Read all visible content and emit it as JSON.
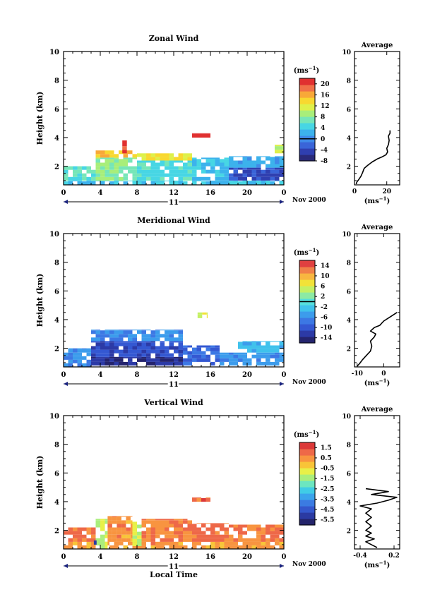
{
  "colors": {
    "zonal_scale": [
      "#2a2a7a",
      "#2f3fb0",
      "#3a64d8",
      "#3f8ae8",
      "#3cb2ec",
      "#47d6e4",
      "#76e6b8",
      "#a8ee7a",
      "#dff04a",
      "#f8d830",
      "#f8a838",
      "#f07048",
      "#e03030"
    ],
    "meridional_scale": [
      "#24246e",
      "#2c3aa6",
      "#3458d2",
      "#3c78e4",
      "#3c9cec",
      "#40c2ec",
      "#56dedc",
      "#8ceaa4",
      "#c4f064",
      "#f2e238",
      "#f8b640",
      "#f08048",
      "#e04040"
    ],
    "vertical_scale": [
      "#23236a",
      "#2b3aa2",
      "#3457cc",
      "#3b7be2",
      "#3ba4ec",
      "#40cce6",
      "#6ce6c0",
      "#aaee7c",
      "#e8f048",
      "#f8c438",
      "#f89440",
      "#ee6848",
      "#dc3838"
    ]
  },
  "chart_data": [
    {
      "type": "heatmap",
      "title": "Zonal Wind",
      "xlabel": "",
      "ylabel": "Height (km)",
      "xlim": [
        0,
        24
      ],
      "ylim": [
        0.7,
        10
      ],
      "xticks": [
        "0",
        "4",
        "8",
        "12",
        "16",
        "20",
        "0"
      ],
      "yticks": [
        "2",
        "4",
        "6",
        "8",
        "10"
      ],
      "date_day": "11",
      "date_label": "Nov 2000",
      "colorbar": {
        "unit_label": "(ms",
        "unit_exp": "−1",
        "unit_close": ")",
        "range": [
          -8,
          22
        ],
        "ticks": [
          "20",
          "16",
          "12",
          "8",
          "4",
          "0",
          "-4",
          "-8"
        ],
        "tick_values": [
          20,
          16,
          12,
          8,
          4,
          0,
          -4,
          -8
        ],
        "marker_value": 0
      },
      "regions": [
        {
          "x": [
            0.0,
            24.0
          ],
          "y": [
            0.7,
            1.0
          ],
          "value": 3
        },
        {
          "x": [
            0.0,
            3.5
          ],
          "y": [
            1.0,
            2.0
          ],
          "value": 6
        },
        {
          "x": [
            3.5,
            8.0
          ],
          "y": [
            1.0,
            2.6
          ],
          "value": 8
        },
        {
          "x": [
            3.5,
            8.0
          ],
          "y": [
            2.6,
            3.1
          ],
          "value": 15
        },
        {
          "x": [
            8.0,
            14.0
          ],
          "y": [
            1.0,
            2.4
          ],
          "value": 5
        },
        {
          "x": [
            8.0,
            14.0
          ],
          "y": [
            2.4,
            2.9
          ],
          "value": 13
        },
        {
          "x": [
            14.0,
            18.0
          ],
          "y": [
            1.0,
            2.6
          ],
          "value": 3
        },
        {
          "x": [
            18.0,
            24.0
          ],
          "y": [
            1.0,
            1.9
          ],
          "value": -4
        },
        {
          "x": [
            18.0,
            24.0
          ],
          "y": [
            1.9,
            2.7
          ],
          "value": 2
        },
        {
          "x": [
            6.4,
            6.9
          ],
          "y": [
            2.9,
            3.8
          ],
          "value": 20
        },
        {
          "x": [
            14.0,
            16.0
          ],
          "y": [
            4.0,
            4.3
          ],
          "value": 21
        },
        {
          "x": [
            23.0,
            24.0
          ],
          "y": [
            2.9,
            3.5
          ],
          "value": 11
        }
      ],
      "average_profile": {
        "title": "Average",
        "xlabel": "(ms",
        "xlabel_exp": "−1",
        "xlabel_close": ")",
        "xlim": [
          0,
          28
        ],
        "xticks": [
          "0",
          "20"
        ],
        "xtick_values": [
          0,
          20
        ],
        "ylim": [
          0.7,
          10
        ],
        "yticks": [
          "2",
          "4",
          "6",
          "8",
          "10"
        ],
        "points": [
          [
            1,
            0.75
          ],
          [
            1.5,
            0.9
          ],
          [
            2.5,
            1.05
          ],
          [
            4,
            1.3
          ],
          [
            5,
            1.55
          ],
          [
            6,
            1.85
          ],
          [
            8,
            2.05
          ],
          [
            11,
            2.3
          ],
          [
            14,
            2.5
          ],
          [
            17,
            2.65
          ],
          [
            19.5,
            2.8
          ],
          [
            20.5,
            3.0
          ],
          [
            20,
            3.25
          ],
          [
            21,
            3.5
          ],
          [
            21.5,
            3.8
          ],
          [
            21,
            4.1
          ],
          [
            22,
            4.3
          ],
          [
            22,
            4.5
          ]
        ]
      }
    },
    {
      "type": "heatmap",
      "title": "Meridional Wind",
      "xlabel": "",
      "ylabel": "Height (km)",
      "xlim": [
        0,
        24
      ],
      "ylim": [
        0.7,
        10
      ],
      "xticks": [
        "0",
        "4",
        "8",
        "12",
        "16",
        "20",
        "0"
      ],
      "yticks": [
        "2",
        "4",
        "6",
        "8",
        "10"
      ],
      "date_day": "11",
      "date_label": "Nov 2000",
      "colorbar": {
        "unit_label": "(ms",
        "unit_exp": "−1",
        "unit_close": ")",
        "range": [
          -16,
          16
        ],
        "ticks": [
          "14",
          "10",
          "6",
          "2",
          "-2",
          "-6",
          "-10",
          "-14"
        ],
        "tick_values": [
          14,
          10,
          6,
          2,
          -2,
          -6,
          -10,
          -14
        ],
        "marker_value": 0
      },
      "regions": [
        {
          "x": [
            0.0,
            3.0
          ],
          "y": [
            0.7,
            2.0
          ],
          "value": -6
        },
        {
          "x": [
            3.0,
            13.0
          ],
          "y": [
            0.8,
            1.4
          ],
          "value": -14
        },
        {
          "x": [
            3.0,
            13.0
          ],
          "y": [
            1.4,
            2.5
          ],
          "value": -11
        },
        {
          "x": [
            3.0,
            13.0
          ],
          "y": [
            2.5,
            3.3
          ],
          "value": -6
        },
        {
          "x": [
            13.0,
            17.0
          ],
          "y": [
            0.8,
            2.2
          ],
          "value": -9
        },
        {
          "x": [
            17.0,
            24.0
          ],
          "y": [
            0.8,
            1.7
          ],
          "value": -6
        },
        {
          "x": [
            19.0,
            24.0
          ],
          "y": [
            1.7,
            2.5
          ],
          "value": -3
        },
        {
          "x": [
            14.6,
            15.7
          ],
          "y": [
            4.1,
            4.5
          ],
          "value": 6
        }
      ],
      "average_profile": {
        "title": "Average",
        "xlabel": "(ms",
        "xlabel_exp": "−1",
        "xlabel_close": ")",
        "xlim": [
          -11,
          6
        ],
        "xticks": [
          "-10",
          "0"
        ],
        "xtick_values": [
          -10,
          0
        ],
        "ylim": [
          0.7,
          10
        ],
        "yticks": [
          "2",
          "4",
          "6",
          "8",
          "10"
        ],
        "points": [
          [
            -10,
            0.75
          ],
          [
            -9,
            0.95
          ],
          [
            -8,
            1.2
          ],
          [
            -6.5,
            1.5
          ],
          [
            -5,
            1.8
          ],
          [
            -4.5,
            2.15
          ],
          [
            -5,
            2.5
          ],
          [
            -3.5,
            2.8
          ],
          [
            -3,
            3.0
          ],
          [
            -5,
            3.2
          ],
          [
            -3.5,
            3.45
          ],
          [
            -1.5,
            3.6
          ],
          [
            0,
            3.9
          ],
          [
            2.5,
            4.2
          ],
          [
            5,
            4.5
          ]
        ]
      }
    },
    {
      "type": "heatmap",
      "title": "Vertical Wind",
      "xlabel": "Local Time",
      "ylabel": "Height (km)",
      "xlim": [
        0,
        24
      ],
      "ylim": [
        0.7,
        10
      ],
      "xticks": [
        "0",
        "4",
        "8",
        "12",
        "16",
        "20",
        "0"
      ],
      "yticks": [
        "2",
        "4",
        "6",
        "8",
        "10"
      ],
      "date_day": "11",
      "date_label": "Nov 2000",
      "colorbar": {
        "unit_label": "(ms",
        "unit_exp": "−1",
        "unit_close": ")",
        "range": [
          -6,
          2
        ],
        "ticks": [
          "1.5",
          "0.5",
          "-0.5",
          "-1.5",
          "-2.5",
          "-3.5",
          "-4.5",
          "-5.5"
        ],
        "tick_values": [
          1.5,
          0.5,
          -0.5,
          -1.5,
          -2.5,
          -3.5,
          -4.5,
          -5.5
        ],
        "marker_value": null
      },
      "regions": [
        {
          "x": [
            0.0,
            24.0
          ],
          "y": [
            0.7,
            1.2
          ],
          "value": 0.3
        },
        {
          "x": [
            0.0,
            3.5
          ],
          "y": [
            1.2,
            2.2
          ],
          "value": 0.8
        },
        {
          "x": [
            3.5,
            4.8
          ],
          "y": [
            0.7,
            2.8
          ],
          "value": -1.2
        },
        {
          "x": [
            4.8,
            7.5
          ],
          "y": [
            1.2,
            3.0
          ],
          "value": 0.4
        },
        {
          "x": [
            7.5,
            8.5
          ],
          "y": [
            0.9,
            2.6
          ],
          "value": -1.0
        },
        {
          "x": [
            8.5,
            14.0
          ],
          "y": [
            1.2,
            2.8
          ],
          "value": 0.6
        },
        {
          "x": [
            14.0,
            18.0
          ],
          "y": [
            1.2,
            2.5
          ],
          "value": 0.9
        },
        {
          "x": [
            18.0,
            24.0
          ],
          "y": [
            1.2,
            2.4
          ],
          "value": 0.7
        },
        {
          "x": [
            14.0,
            16.0
          ],
          "y": [
            4.0,
            4.3
          ],
          "value": 1.0
        },
        {
          "x": [
            3.3,
            3.6
          ],
          "y": [
            1.0,
            1.3
          ],
          "value": -5.0
        }
      ],
      "average_profile": {
        "title": "Average",
        "xlabel": "(ms",
        "xlabel_exp": "−1",
        "xlabel_close": ")",
        "xlim": [
          -0.5,
          0.3
        ],
        "xticks": [
          "-0.4",
          "0.2"
        ],
        "xtick_values": [
          -0.4,
          0.2
        ],
        "ylim": [
          0.7,
          10
        ],
        "yticks": [
          "2",
          "4",
          "6",
          "8",
          "10"
        ],
        "points": [
          [
            -0.1,
            0.8
          ],
          [
            -0.2,
            1.0
          ],
          [
            -0.3,
            1.2
          ],
          [
            -0.15,
            1.4
          ],
          [
            -0.3,
            1.6
          ],
          [
            -0.2,
            1.8
          ],
          [
            -0.3,
            2.0
          ],
          [
            -0.2,
            2.3
          ],
          [
            -0.3,
            2.6
          ],
          [
            -0.2,
            2.9
          ],
          [
            -0.3,
            3.2
          ],
          [
            -0.2,
            3.5
          ],
          [
            -0.4,
            3.7
          ],
          [
            -0.1,
            3.9
          ],
          [
            0.1,
            4.1
          ],
          [
            0.25,
            4.3
          ],
          [
            -0.2,
            4.5
          ],
          [
            0.1,
            4.7
          ],
          [
            -0.3,
            4.9
          ]
        ]
      }
    }
  ]
}
